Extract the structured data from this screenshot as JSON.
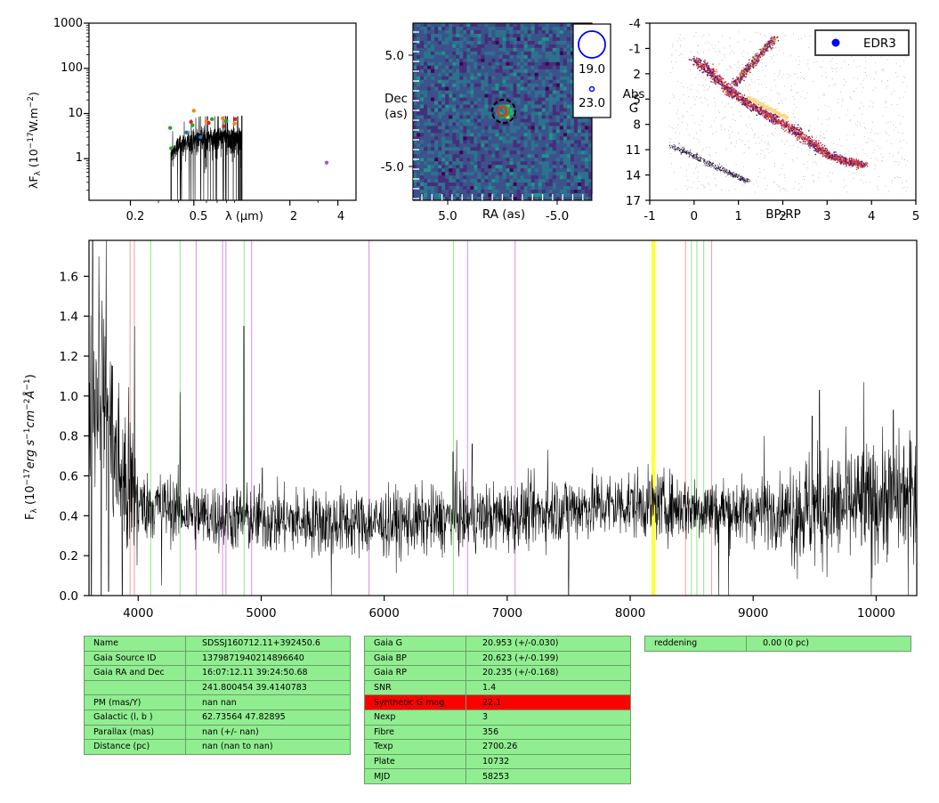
{
  "sed": {
    "ylabel": "λF_λ (10^{-17}W.m^{-2})",
    "xlabel": "λ (μm)",
    "yticks": [
      "1000",
      "100",
      "10",
      "1"
    ],
    "xticks": [
      "0.2",
      "0.5",
      "2",
      "4"
    ],
    "points": [
      {
        "x": 0.355,
        "y": 4.8,
        "c": "#2ca02c"
      },
      {
        "x": 0.36,
        "y": 1.7,
        "c": "#2ca02c"
      },
      {
        "x": 0.45,
        "y": 3.8,
        "c": "#1f77b4"
      },
      {
        "x": 0.48,
        "y": 6.5,
        "c": "#d62728"
      },
      {
        "x": 0.49,
        "y": 5.5,
        "c": "#2ca02c"
      },
      {
        "x": 0.5,
        "y": 11.5,
        "c": "#ff7f0e"
      },
      {
        "x": 0.55,
        "y": 3.0,
        "c": "#1f77b4"
      },
      {
        "x": 0.6,
        "y": 6.8,
        "c": "#ff7f0e"
      },
      {
        "x": 0.62,
        "y": 6.2,
        "c": "#d62728"
      },
      {
        "x": 0.65,
        "y": 7.5,
        "c": "#2ca02c"
      },
      {
        "x": 0.76,
        "y": 7.8,
        "c": "#ff7f0e"
      },
      {
        "x": 0.77,
        "y": 5.2,
        "c": "#d62728"
      },
      {
        "x": 0.8,
        "y": 6.8,
        "c": "#2ca02c"
      },
      {
        "x": 0.9,
        "y": 6.0,
        "c": "#ff7f0e"
      },
      {
        "x": 0.91,
        "y": 7.5,
        "c": "#d62728"
      },
      {
        "x": 3.4,
        "y": 0.82,
        "c": "#9467bd"
      }
    ]
  },
  "image": {
    "ylabel_1": "Dec",
    "ylabel_2": "(as)",
    "xlabel": "RA (as)",
    "yticks": [
      "5.0",
      "-5.0"
    ],
    "xticks": [
      "5.0",
      "-5.0"
    ],
    "legend": [
      "19.0",
      "23.0"
    ]
  },
  "cmd": {
    "xlabel": "BP-RP",
    "ylabel_1": "Abs",
    "ylabel_2": "G",
    "yticks": [
      "-4",
      "-1",
      "2",
      "5",
      "8",
      "11",
      "14",
      "17"
    ],
    "xticks": [
      "-1",
      "0",
      "1",
      "2",
      "3",
      "4",
      "5"
    ],
    "legend": "EDR3"
  },
  "chart_data": {
    "type": "line",
    "ylabel": "F_λ (10^{-17}erg s^{-1}cm^{-2}Å^{-1})",
    "xlim": [
      3600,
      10330
    ],
    "ylim": [
      0,
      1.78
    ],
    "xticks": [
      "4000",
      "5000",
      "6000",
      "7000",
      "8000",
      "9000",
      "10000"
    ],
    "yticks": [
      "0.0",
      "0.2",
      "0.4",
      "0.6",
      "0.8",
      "1.0",
      "1.2",
      "1.4",
      "1.6"
    ],
    "spectrum_nodes": [
      {
        "x": 3600,
        "y": 0.9
      },
      {
        "x": 3700,
        "y": 1.1
      },
      {
        "x": 3800,
        "y": 0.7
      },
      {
        "x": 3900,
        "y": 0.55
      },
      {
        "x": 4000,
        "y": 0.45
      },
      {
        "x": 4200,
        "y": 0.45
      },
      {
        "x": 4500,
        "y": 0.4
      },
      {
        "x": 5000,
        "y": 0.38
      },
      {
        "x": 5500,
        "y": 0.37
      },
      {
        "x": 6000,
        "y": 0.36
      },
      {
        "x": 6500,
        "y": 0.38
      },
      {
        "x": 7000,
        "y": 0.4
      },
      {
        "x": 7500,
        "y": 0.44
      },
      {
        "x": 8000,
        "y": 0.46
      },
      {
        "x": 8500,
        "y": 0.44
      },
      {
        "x": 9000,
        "y": 0.42
      },
      {
        "x": 9500,
        "y": 0.43
      },
      {
        "x": 10000,
        "y": 0.47
      },
      {
        "x": 10330,
        "y": 0.52
      }
    ],
    "spikes": [
      {
        "x": 3630,
        "y": 1.78
      },
      {
        "x": 3680,
        "y": 1.7
      },
      {
        "x": 3740,
        "y": 1.78
      },
      {
        "x": 3790,
        "y": 1.15
      },
      {
        "x": 3970,
        "y": 1.35
      },
      {
        "x": 4340,
        "y": 1.02
      },
      {
        "x": 4860,
        "y": 1.35
      },
      {
        "x": 5010,
        "y": 0.64
      },
      {
        "x": 6560,
        "y": 0.72
      },
      {
        "x": 6590,
        "y": 0.78
      },
      {
        "x": 6715,
        "y": 0.76
      },
      {
        "x": 7330,
        "y": 0.73
      },
      {
        "x": 9090,
        "y": 0.8
      },
      {
        "x": 9480,
        "y": 0.9
      },
      {
        "x": 9540,
        "y": 1.03
      },
      {
        "x": 9900,
        "y": 1.07
      },
      {
        "x": 10140,
        "y": 0.93
      },
      {
        "x": 10320,
        "y": 0.75
      }
    ],
    "dips": [
      {
        "x": 3620,
        "y": 0.0
      },
      {
        "x": 3700,
        "y": 0.0
      },
      {
        "x": 3760,
        "y": 0.02
      },
      {
        "x": 3870,
        "y": 0.0
      },
      {
        "x": 4190,
        "y": 0.05
      },
      {
        "x": 5570,
        "y": 0.0
      },
      {
        "x": 7500,
        "y": 0.0
      },
      {
        "x": 8720,
        "y": 0.0
      },
      {
        "x": 8800,
        "y": 0.0
      },
      {
        "x": 9960,
        "y": 0.0
      },
      {
        "x": 10260,
        "y": 0.0
      }
    ],
    "lines": [
      {
        "x": 3934,
        "color": "#f4a6a6"
      },
      {
        "x": 3969,
        "color": "#f4a6a6"
      },
      {
        "x": 4102,
        "color": "#9be89b"
      },
      {
        "x": 4340,
        "color": "#9be89b"
      },
      {
        "x": 4861,
        "color": "#9be89b"
      },
      {
        "x": 6563,
        "color": "#9be89b"
      },
      {
        "x": 8498,
        "color": "#9be89b"
      },
      {
        "x": 8542,
        "color": "#9be89b"
      },
      {
        "x": 8598,
        "color": "#9be89b"
      },
      {
        "x": 8662,
        "color": "#f4a6a6"
      },
      {
        "x": 8450,
        "color": "#f4a6a6"
      },
      {
        "x": 4471,
        "color": "#dd99dd"
      },
      {
        "x": 4686,
        "color": "#dd99dd"
      },
      {
        "x": 4713,
        "color": "#dd99dd"
      },
      {
        "x": 4922,
        "color": "#dd99dd"
      },
      {
        "x": 5876,
        "color": "#dd99dd"
      },
      {
        "x": 6678,
        "color": "#dd99dd"
      },
      {
        "x": 7065,
        "color": "#dd99dd"
      },
      {
        "x": 8183,
        "color": "#ffff33"
      },
      {
        "x": 8195,
        "color": "#ffff33"
      }
    ]
  },
  "table1": [
    [
      "Name",
      "SDSSJ160712.11+392450.6"
    ],
    [
      "Gaia Source ID",
      "1379871940214896640"
    ],
    [
      "Gaia RA and Dec",
      "16:07:12.11    39:24:50.68"
    ],
    [
      "",
      "241.800454    39.4140783"
    ],
    [
      "PM (mas/Y)",
      "nan    nan"
    ],
    [
      "Galactic (l, b )",
      "62.73564    47.82895"
    ],
    [
      "Parallax (mas)",
      "nan (+/- nan)"
    ],
    [
      "Distance (pc)",
      "nan (nan to nan)"
    ]
  ],
  "table2": [
    [
      "Gaia G",
      "20.953 (+/-0.030)"
    ],
    [
      "Gaia BP",
      "20.623 (+/-0.199)"
    ],
    [
      "Gaia RP",
      "20.235 (+/-0.168)"
    ],
    [
      "SNR",
      "1.4"
    ],
    [
      "Synthetic G mag",
      "22.1"
    ],
    [
      "Nexp",
      "3"
    ],
    [
      "Fibre",
      "356"
    ],
    [
      "Texp",
      "2700.26"
    ],
    [
      "Plate",
      "10732"
    ],
    [
      "MJD",
      "58253"
    ]
  ],
  "table3": [
    [
      "reddening",
      "0.00 (0 pc)"
    ]
  ],
  "colors": {
    "highlight": "#ff0000",
    "cell": "#90ee90"
  }
}
